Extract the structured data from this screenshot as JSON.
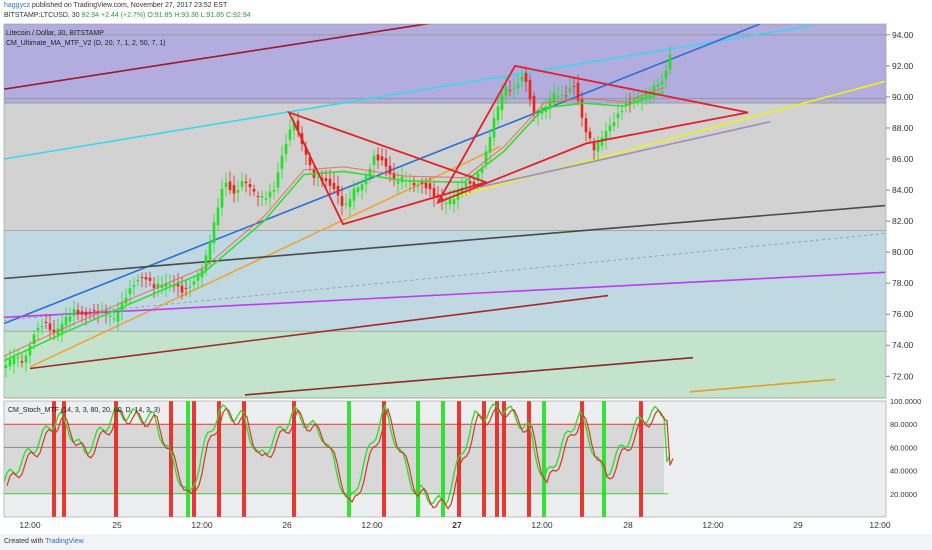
{
  "header": {
    "user": "haggycz",
    "published": "published on TradingView.com, November 27, 2017 23:52 EST",
    "ticker": "BITSTAMP:LTCUSD, 30",
    "last": "92.94",
    "change": "+2.44 (+2.7%)",
    "ohlc": "O:91.85 H:93.36 L:91.85 C:92.94"
  },
  "legend": {
    "title": "Litecoin / Dollar, 30, BITSTAMP",
    "indicator": "CM_Ultimate_MA_MTF_V2 (D, 20, 7, 1, 2, 50, 7, 1)",
    "stoch": "CM_Stoch_MTF (14, 3, 3, 80, 20, 60, D, 14, 3, 3)"
  },
  "footer": {
    "created": "Created with",
    "brand": "TradingView"
  },
  "chart_data": {
    "type": "candlestick",
    "price_axis": {
      "ticks": [
        "94.00",
        "92.00",
        "90.00",
        "88.00",
        "86.00",
        "84.00",
        "82.00",
        "80.00",
        "78.00",
        "76.00",
        "74.00",
        "72.00"
      ],
      "range": [
        70.6,
        94.7
      ]
    },
    "stoch_axis": {
      "ticks": [
        "100.0000",
        "80.0000",
        "60.0000",
        "40.0000",
        "20.0000"
      ],
      "range": [
        0,
        100
      ],
      "levels": [
        80,
        60,
        20
      ]
    },
    "time_axis": {
      "ticks": [
        "12:00",
        "25",
        "12:00",
        "26",
        "12:00",
        "27",
        "12:00",
        "28",
        "12:00",
        "29",
        "12:00"
      ],
      "bold": "27"
    },
    "price_path": [
      [
        0,
        72.6
      ],
      [
        10,
        73.5
      ],
      [
        20,
        73.0
      ],
      [
        30,
        74.6
      ],
      [
        40,
        75.3
      ],
      [
        50,
        74.8
      ],
      [
        60,
        75.8
      ],
      [
        70,
        76.3
      ],
      [
        80,
        75.7
      ],
      [
        90,
        76.0
      ],
      [
        100,
        76.2
      ],
      [
        110,
        75.9
      ],
      [
        120,
        77.0
      ],
      [
        130,
        77.8
      ],
      [
        140,
        78.3
      ],
      [
        150,
        77.9
      ],
      [
        160,
        78.2
      ],
      [
        170,
        77.9
      ],
      [
        180,
        77.2
      ],
      [
        190,
        78.0
      ],
      [
        200,
        79.3
      ],
      [
        210,
        82.0
      ],
      [
        220,
        84.6
      ],
      [
        230,
        83.5
      ],
      [
        240,
        84.6
      ],
      [
        250,
        84.0
      ],
      [
        260,
        83.6
      ],
      [
        270,
        84.0
      ],
      [
        280,
        86.5
      ],
      [
        290,
        88.5
      ],
      [
        300,
        86.8
      ],
      [
        310,
        85.0
      ],
      [
        320,
        84.5
      ],
      [
        330,
        83.9
      ],
      [
        340,
        82.8
      ],
      [
        350,
        84.2
      ],
      [
        360,
        84.6
      ],
      [
        370,
        86.0
      ],
      [
        380,
        85.6
      ],
      [
        390,
        84.6
      ],
      [
        400,
        85.0
      ],
      [
        410,
        84.4
      ],
      [
        420,
        84.2
      ],
      [
        430,
        83.5
      ],
      [
        440,
        83.2
      ],
      [
        450,
        83.7
      ],
      [
        460,
        84.5
      ],
      [
        470,
        84.2
      ],
      [
        480,
        85.7
      ],
      [
        490,
        88.7
      ],
      [
        500,
        90.8
      ],
      [
        510,
        90.5
      ],
      [
        520,
        91.3
      ],
      [
        530,
        88.7
      ],
      [
        540,
        89.4
      ],
      [
        550,
        90.4
      ],
      [
        560,
        90.0
      ],
      [
        570,
        90.6
      ],
      [
        580,
        88.0
      ],
      [
        590,
        86.8
      ],
      [
        600,
        87.8
      ],
      [
        610,
        88.4
      ],
      [
        620,
        89.2
      ],
      [
        630,
        89.8
      ],
      [
        640,
        90.3
      ],
      [
        650,
        90.8
      ],
      [
        660,
        91.0
      ],
      [
        667,
        92.9
      ]
    ],
    "ma_path": [
      [
        0,
        73.0
      ],
      [
        60,
        74.8
      ],
      [
        120,
        76.5
      ],
      [
        200,
        78.7
      ],
      [
        260,
        82.0
      ],
      [
        300,
        85.0
      ],
      [
        340,
        85.2
      ],
      [
        400,
        84.6
      ],
      [
        460,
        84.5
      ],
      [
        500,
        86.5
      ],
      [
        540,
        89.3
      ],
      [
        580,
        89.6
      ],
      [
        620,
        89.4
      ],
      [
        660,
        90.3
      ]
    ],
    "horizontal_lines": [
      94.0,
      89.9,
      89.6,
      81.4,
      74.9,
      70.6
    ],
    "zones": [
      {
        "from": 94.7,
        "to": 89.6,
        "color": "#b3acdf"
      },
      {
        "from": 89.6,
        "to": 81.4,
        "color": "#d2d2d2"
      },
      {
        "from": 81.4,
        "to": 74.9,
        "color": "#c0d8e2"
      },
      {
        "from": 74.9,
        "to": 70.6,
        "color": "#c4e3cc"
      }
    ],
    "trendlines": [
      {
        "color": "#9a1a2e",
        "points": [
          [
            4,
            90.5
          ],
          [
            436,
            94.8
          ]
        ]
      },
      {
        "color": "#3fd5f0",
        "points": [
          [
            4,
            86.0
          ],
          [
            812,
            94.6
          ]
        ]
      },
      {
        "color": "#2d6fd6",
        "points": [
          [
            4,
            75.4
          ],
          [
            760,
            94.7
          ]
        ]
      },
      {
        "color": "#f2a23a",
        "points": [
          [
            30,
            72.6
          ],
          [
            500,
            86.8
          ]
        ]
      },
      {
        "color": "#f0f020",
        "points": [
          [
            450,
            83.5
          ],
          [
            885,
            91.0
          ]
        ]
      },
      {
        "color": "#9c8fb8",
        "points": [
          [
            480,
            84.2
          ],
          [
            770,
            88.4
          ]
        ]
      },
      {
        "color": "#4a4a4a",
        "points": [
          [
            4,
            78.3
          ],
          [
            885,
            83.0
          ]
        ]
      },
      {
        "color": "#c03cf0",
        "points": [
          [
            4,
            75.8
          ],
          [
            885,
            78.7
          ]
        ]
      },
      {
        "color": "#a02a2a",
        "points": [
          [
            30,
            72.5
          ],
          [
            608,
            77.2
          ]
        ]
      },
      {
        "color": "#8a2a2a",
        "points": [
          [
            245,
            70.8
          ],
          [
            693,
            73.2
          ]
        ]
      },
      {
        "color": "#e0a020",
        "points": [
          [
            690,
            71.0
          ],
          [
            835,
            71.8
          ]
        ]
      }
    ],
    "triangles": [
      {
        "color": "#e0202a",
        "points": [
          [
            289,
            89.0
          ],
          [
            486,
            84.5
          ],
          [
            343,
            81.8
          ]
        ]
      },
      {
        "color": "#e0202a",
        "points": [
          [
            438,
            83.2
          ],
          [
            515,
            92.0
          ],
          [
            748,
            89.0
          ],
          [
            586,
            87.0
          ]
        ]
      }
    ],
    "stoch_signals": [
      {
        "t": 50,
        "c": "r"
      },
      {
        "t": 60,
        "c": "r"
      },
      {
        "t": 112,
        "c": "r"
      },
      {
        "t": 167,
        "c": "r"
      },
      {
        "t": 184,
        "c": "g"
      },
      {
        "t": 190,
        "c": "r"
      },
      {
        "t": 215,
        "c": "r"
      },
      {
        "t": 240,
        "c": "r"
      },
      {
        "t": 290,
        "c": "r"
      },
      {
        "t": 345,
        "c": "g"
      },
      {
        "t": 380,
        "c": "r"
      },
      {
        "t": 414,
        "c": "g"
      },
      {
        "t": 439,
        "c": "g"
      },
      {
        "t": 455,
        "c": "r"
      },
      {
        "t": 480,
        "c": "r"
      },
      {
        "t": 493,
        "c": "r"
      },
      {
        "t": 500,
        "c": "r"
      },
      {
        "t": 525,
        "c": "r"
      },
      {
        "t": 540,
        "c": "g"
      },
      {
        "t": 578,
        "c": "r"
      },
      {
        "t": 600,
        "c": "g"
      },
      {
        "t": 637,
        "c": "r"
      }
    ],
    "stoch_k": [
      [
        0,
        30
      ],
      [
        30,
        60
      ],
      [
        55,
        88
      ],
      [
        80,
        55
      ],
      [
        112,
        90
      ],
      [
        150,
        85
      ],
      [
        185,
        15
      ],
      [
        200,
        60
      ],
      [
        215,
        92
      ],
      [
        240,
        85
      ],
      [
        255,
        50
      ],
      [
        290,
        90
      ],
      [
        320,
        70
      ],
      [
        345,
        10
      ],
      [
        380,
        92
      ],
      [
        410,
        25
      ],
      [
        440,
        10
      ],
      [
        470,
        85
      ],
      [
        500,
        95
      ],
      [
        525,
        75
      ],
      [
        540,
        30
      ],
      [
        575,
        90
      ],
      [
        600,
        35
      ],
      [
        637,
        85
      ],
      [
        660,
        92
      ]
    ]
  }
}
